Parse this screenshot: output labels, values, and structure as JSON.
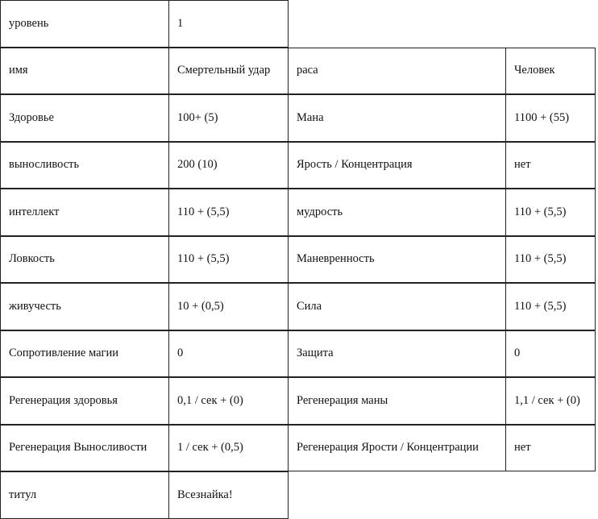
{
  "top_row": {
    "label": "уровень",
    "value": "1"
  },
  "rows": [
    {
      "l1": "имя",
      "v1": "Смертельный удар",
      "l2": "раса",
      "v2": "Человек"
    },
    {
      "l1": "Здоровье",
      "v1": "100+ (5)",
      "l2": "Мана",
      "v2": "1100 + (55)"
    },
    {
      "l1": "выносливость",
      "v1": "200 (10)",
      "l2": "Ярость / Концентрация",
      "v2": "нет"
    },
    {
      "l1": "интеллект",
      "v1": "110 + (5,5)",
      "l2": "мудрость",
      "v2": "110 + (5,5)"
    },
    {
      "l1": "Ловкость",
      "v1": "110 + (5,5)",
      "l2": "Маневренность",
      "v2": "110 + (5,5)"
    },
    {
      "l1": "живучесть",
      "v1": "10 + (0,5)",
      "l2": "Сила",
      "v2": "110 + (5,5)"
    },
    {
      "l1": "Сопротивление магии",
      "v1": "0",
      "l2": "Защита",
      "v2": "0"
    },
    {
      "l1": "Регенерация здоровья",
      "v1": "0,1 / сек + (0)",
      "l2": "Регенерация маны",
      "v2": "1,1 / сек + (0)"
    },
    {
      "l1": "Регенерация Выносливости",
      "v1": "1 / сек + (0,5)",
      "l2": "Регенерация Ярости / Концентрации",
      "v2": "нет"
    }
  ],
  "bottom_row": {
    "label": "титул",
    "value": "Всезнайка!"
  }
}
